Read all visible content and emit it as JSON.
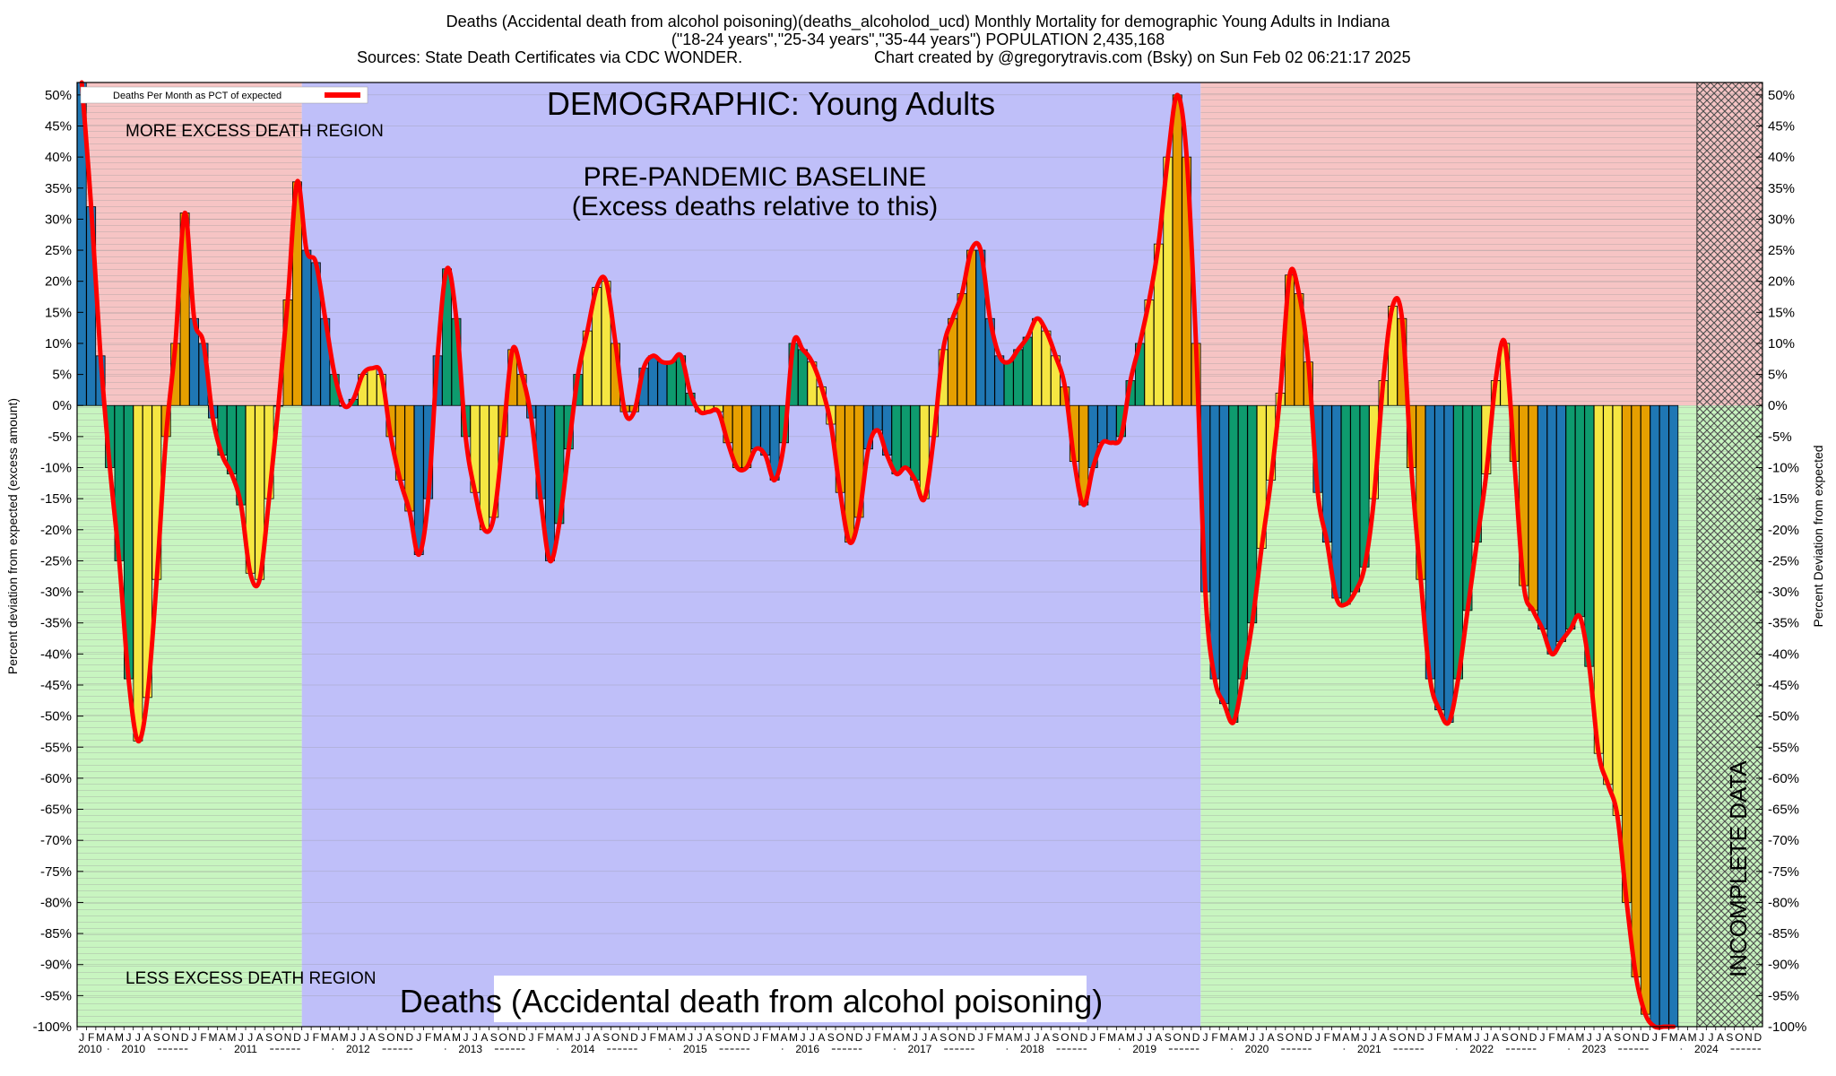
{
  "header": {
    "line1": "Deaths (Accidental death from alcohol poisoning)(deaths_alcoholod_ucd) Monthly Mortality for demographic Young Adults in Indiana",
    "line2": "(\"18-24 years\",\"25-34 years\",\"35-44 years\") POPULATION 2,435,168",
    "line3a": "Sources: State Death Certificates via CDC WONDER.",
    "line3b": "Chart created by @gregorytravis.com (Bsky) on Sun Feb 02 06:21:17 2025"
  },
  "annotations": {
    "demographic": "DEMOGRAPHIC: Young Adults",
    "baseline_line1": "PRE-PANDEMIC BASELINE",
    "baseline_line2": "(Excess deaths relative to this)",
    "more_region": "MORE EXCESS DEATH REGION",
    "less_region": "LESS EXCESS DEATH REGION",
    "bottom_label": "Deaths (Accidental death from alcohol poisoning)",
    "incomplete": "INCOMPLETE DATA"
  },
  "colors": {
    "more_region": "#f6c4c4",
    "less_region": "#c8f5c0",
    "baseline_region": "#bfbff9",
    "line": "#ff0000",
    "bar_palette": [
      "#1f77b4",
      "#0e9b6e",
      "#f5e642",
      "#e69f00"
    ]
  },
  "chart_data": {
    "type": "bar",
    "title": "Deaths (Accidental death from alcohol poisoning)(deaths_alcoholod_ucd) Monthly Mortality for demographic Young Adults in Indiana",
    "ylabel_left": "Percent deviation from expected (excess amount)",
    "ylabel_right": "Percent Deviation from expected",
    "legend": {
      "label": "Deaths Per Month as PCT of expected",
      "placement": "top-left"
    },
    "ylim": [
      -100,
      52
    ],
    "yticks": [
      50,
      45,
      40,
      35,
      30,
      25,
      20,
      15,
      10,
      5,
      0,
      -5,
      -10,
      -15,
      -20,
      -25,
      -30,
      -35,
      -40,
      -45,
      -50,
      -55,
      -60,
      -65,
      -70,
      -75,
      -80,
      -85,
      -90,
      -95,
      -100
    ],
    "month_letters": [
      "J",
      "F",
      "M",
      "A",
      "M",
      "J",
      "J",
      "A",
      "S",
      "O",
      "N",
      "D"
    ],
    "years": [
      "2010",
      "2011",
      "2012",
      "2013",
      "2014",
      "2015",
      "2016",
      "2017",
      "2018",
      "2019",
      "2020",
      "2021",
      "2022",
      "2023",
      "2024"
    ],
    "start": "2010-01",
    "baseline_period": [
      "2012-01",
      "2019-12"
    ],
    "incomplete_from": "2024-06",
    "grid": true,
    "values": [
      52,
      32,
      8,
      -10,
      -25,
      -44,
      -54,
      -47,
      -28,
      -5,
      10,
      31,
      14,
      10,
      -2,
      -8,
      -11,
      -16,
      -27,
      -28,
      -15,
      0,
      17,
      36,
      25,
      23,
      14,
      5,
      0,
      1,
      5,
      6,
      5,
      -5,
      -12,
      -17,
      -24,
      -15,
      8,
      22,
      14,
      -5,
      -14,
      -20,
      -18,
      -5,
      9,
      5,
      -2,
      -15,
      -25,
      -19,
      -7,
      5,
      12,
      19,
      20,
      10,
      -1,
      -1,
      6,
      8,
      7,
      7,
      8,
      2,
      -1,
      -1,
      -1,
      -6,
      -10,
      -10,
      -7,
      -8,
      -12,
      -6,
      10,
      9,
      7,
      3,
      -3,
      -14,
      -22,
      -18,
      -7,
      -4,
      -8,
      -11,
      -10,
      -12,
      -15,
      -5,
      9,
      14,
      18,
      25,
      25,
      14,
      8,
      7,
      9,
      11,
      14,
      12,
      8,
      3,
      -9,
      -16,
      -10,
      -6,
      -6,
      -5,
      4,
      10,
      17,
      26,
      40,
      50,
      40,
      10,
      -30,
      -44,
      -48,
      -51,
      -44,
      -35,
      -23,
      -12,
      2,
      21,
      18,
      7,
      -14,
      -22,
      -31,
      -32,
      -30,
      -26,
      -15,
      4,
      16,
      14,
      -10,
      -28,
      -44,
      -49,
      -51,
      -44,
      -33,
      -22,
      -11,
      4,
      10,
      -9,
      -29,
      -33,
      -36,
      -40,
      -38,
      -36,
      -34,
      -42,
      -56,
      -61,
      -66,
      -80,
      -92,
      -98,
      -100,
      -100,
      -100
    ]
  }
}
